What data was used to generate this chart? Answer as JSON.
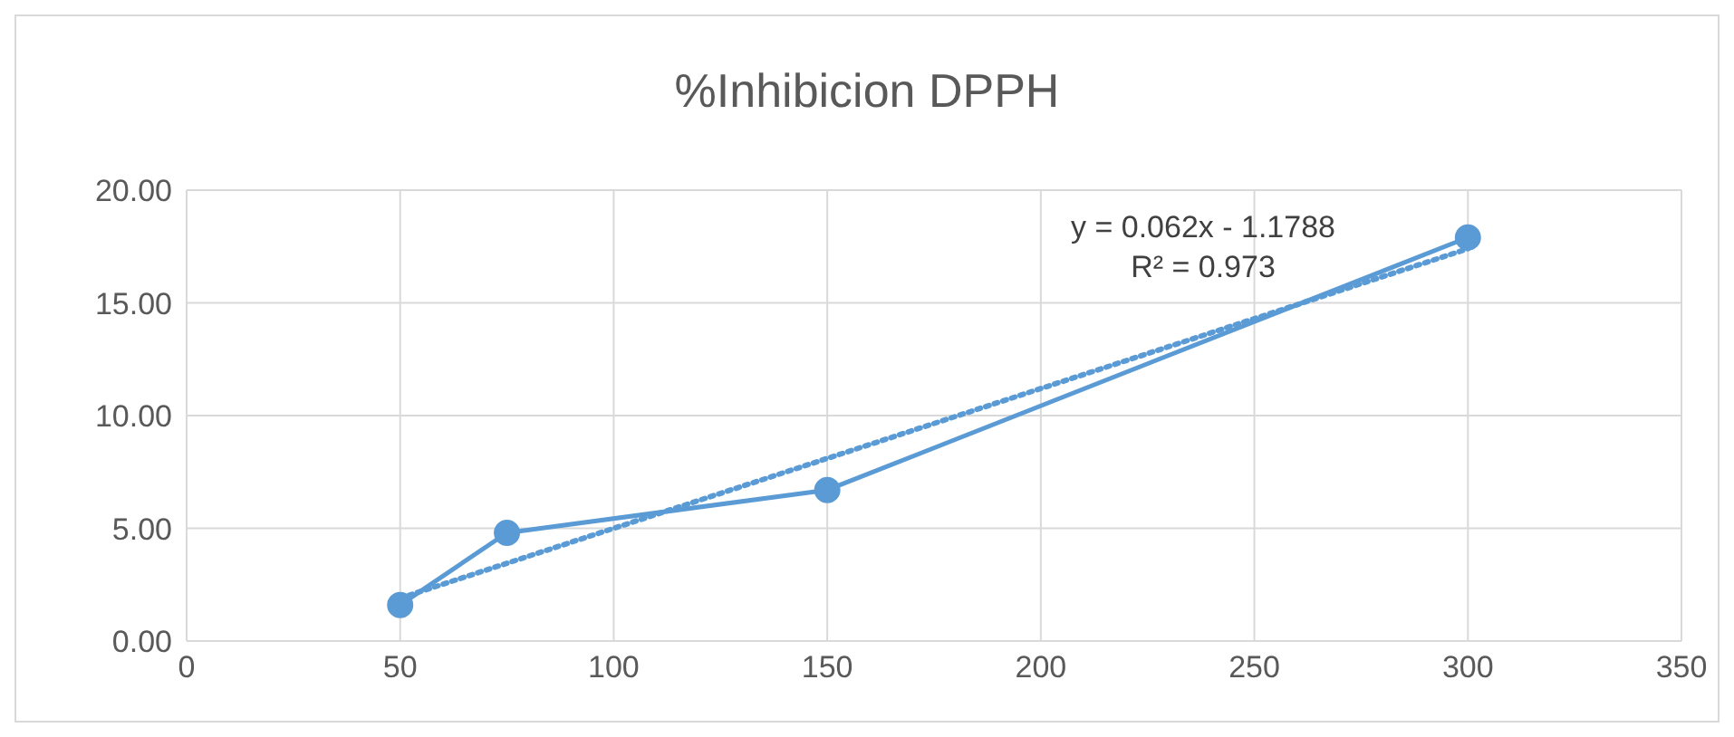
{
  "chart_data": {
    "type": "line",
    "title": "%Inhibicion DPPH",
    "series": [
      {
        "color": "#5b9bd5",
        "x": [
          50,
          75,
          150,
          300
        ],
        "values": [
          1.6,
          4.8,
          6.7,
          17.9
        ],
        "marker": "circle",
        "line_style": "solid"
      },
      {
        "color": "#5b9bd5",
        "x": [
          50,
          300
        ],
        "values": [
          1.9,
          17.4
        ],
        "marker": "none",
        "line_style": "dotted"
      }
    ],
    "xlim": [
      0,
      350
    ],
    "xticks": [
      0,
      50,
      100,
      150,
      200,
      250,
      300,
      350
    ],
    "ylim": [
      0,
      20
    ],
    "yticks": [
      {
        "value": 0,
        "label": "0.00"
      },
      {
        "value": 5,
        "label": "5.00"
      },
      {
        "value": 10,
        "label": "10.00"
      },
      {
        "value": 15,
        "label": "15.00"
      },
      {
        "value": 20,
        "label": "20.00"
      }
    ],
    "grid": true,
    "annotations": [
      "y = 0.062x - 1.1788",
      "R² = 0.973"
    ]
  }
}
